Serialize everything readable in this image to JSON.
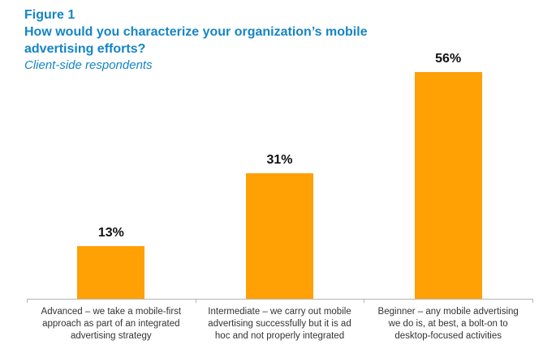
{
  "figure": {
    "label": "Figure 1",
    "title": "How would you characterize your organization’s mobile advertising efforts?",
    "subtitle": "Client-side respondents"
  },
  "colors": {
    "accent_blue": "#1585c5",
    "bar_orange": "#ffa005",
    "axis_gray": "#b7b3b3",
    "text_dark": "#333333"
  },
  "chart_data": {
    "type": "bar",
    "title": "How would you characterize your organization’s mobile advertising efforts?",
    "subtitle": "Client-side respondents",
    "categories": [
      "Advanced – we take a mobile-first approach as part of an integrated advertising strategy",
      "Intermediate – we carry out mobile advertising successfully but it is ad hoc and not properly integrated",
      "Beginner – any mobile advertising we do is, at best, a bolt-on to desktop-focused activities"
    ],
    "values": [
      13,
      31,
      56
    ],
    "value_labels": [
      "13%",
      "31%",
      "56%"
    ],
    "unit": "%",
    "ylim": [
      0,
      73.8
    ],
    "grid": false,
    "legend": false,
    "bar_color": "#ffa005"
  }
}
